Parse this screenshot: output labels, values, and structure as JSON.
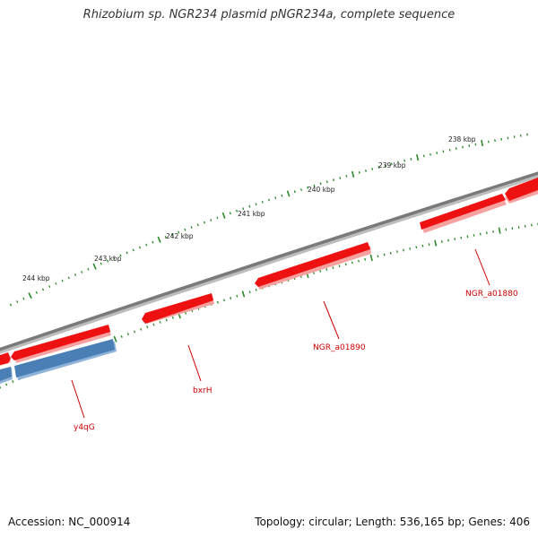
{
  "title": "Rhizobium sp. NGR234 plasmid pNGR234a, complete sequence",
  "footer": {
    "accession": "Accession: NC_000914",
    "summary": "Topology: circular; Length: 536,165 bp; Genes: 406"
  },
  "colors": {
    "forward_gene": "#ee1111",
    "reverse_gene": "#4a7fb5",
    "backbone": "#7a7a7a",
    "tick": "#2a8a2a",
    "gene_label": "#cc0000"
  },
  "scale_labels": [
    "238 kbp",
    "239 kbp",
    "240 kbp",
    "241 kbp",
    "242 kbp",
    "243 kbp",
    "244 kbp"
  ],
  "gene_labels": [
    "NGR_a01880",
    "NGR_a01890",
    "bxrH",
    "y4qG"
  ]
}
